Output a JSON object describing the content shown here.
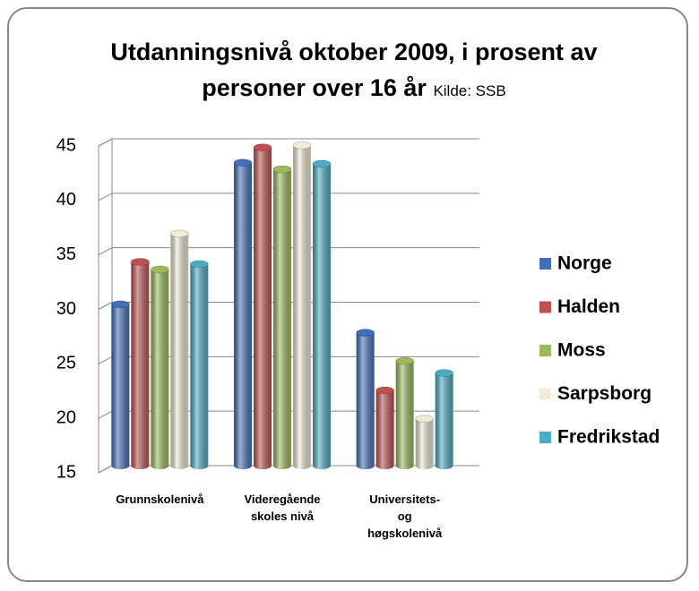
{
  "chart_data": {
    "type": "bar",
    "title": "Utdanningsnivå oktober 2009, i prosent av personer over 16 år",
    "subtitle": "Kilde: SSB",
    "categories": [
      "Grunnskolenivå",
      "Videregående skoles nivå",
      "Universitets- og høgskolenivå"
    ],
    "series": [
      {
        "name": "Norge",
        "color": "#3f6fbd",
        "values": [
          29.8,
          42.8,
          27.2
        ]
      },
      {
        "name": "Halden",
        "color": "#c0504d",
        "values": [
          33.7,
          44.2,
          21.9
        ]
      },
      {
        "name": "Moss",
        "color": "#9bbb59",
        "values": [
          33.0,
          42.2,
          24.6
        ]
      },
      {
        "name": "Sarpsborg",
        "color": "#f2ebd5",
        "values": [
          36.3,
          44.4,
          19.3
        ]
      },
      {
        "name": "Fredrikstad",
        "color": "#4bacc6",
        "values": [
          33.5,
          42.7,
          23.5
        ]
      }
    ],
    "ylim": [
      15,
      45
    ],
    "yticks": [
      15,
      20,
      25,
      30,
      35,
      40,
      45
    ],
    "grid": true,
    "legend": "right"
  }
}
